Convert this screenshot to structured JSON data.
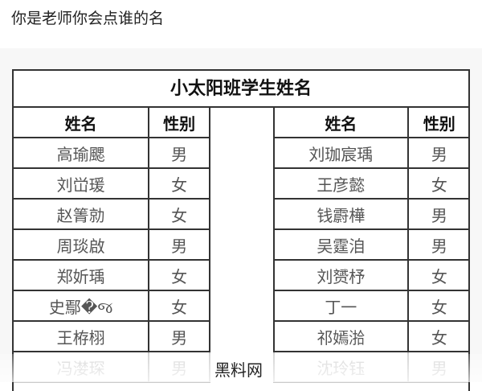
{
  "question": "你是老师你会点谁的名",
  "table": {
    "title": "小太阳班学生姓名",
    "headers": {
      "name": "姓名",
      "gender": "性别"
    },
    "left": [
      {
        "name": "高瑜颸",
        "gender": "男"
      },
      {
        "name": "刘峃瑗",
        "gender": "女"
      },
      {
        "name": "赵箐勍",
        "gender": "女"
      },
      {
        "name": "周琰啟",
        "gender": "男"
      },
      {
        "name": "郑妡瑀",
        "gender": "女"
      },
      {
        "name": "史鄢�જ",
        "gender": "女"
      },
      {
        "name": "王栫栩",
        "gender": "男"
      },
      {
        "name": "冯漤琛",
        "gender": "男"
      }
    ],
    "right": [
      {
        "name": "刘珈宸瑀",
        "gender": "男"
      },
      {
        "name": "王彦懿",
        "gender": "女"
      },
      {
        "name": "钱霨樺",
        "gender": "男"
      },
      {
        "name": "吴霆洎",
        "gender": "男"
      },
      {
        "name": "刘赟杼",
        "gender": "女"
      },
      {
        "name": "丁一",
        "gender": "女"
      },
      {
        "name": "祁嫣湁",
        "gender": "女"
      },
      {
        "name": "沈玲钰",
        "gender": "男"
      }
    ]
  },
  "watermark": "黑料网"
}
